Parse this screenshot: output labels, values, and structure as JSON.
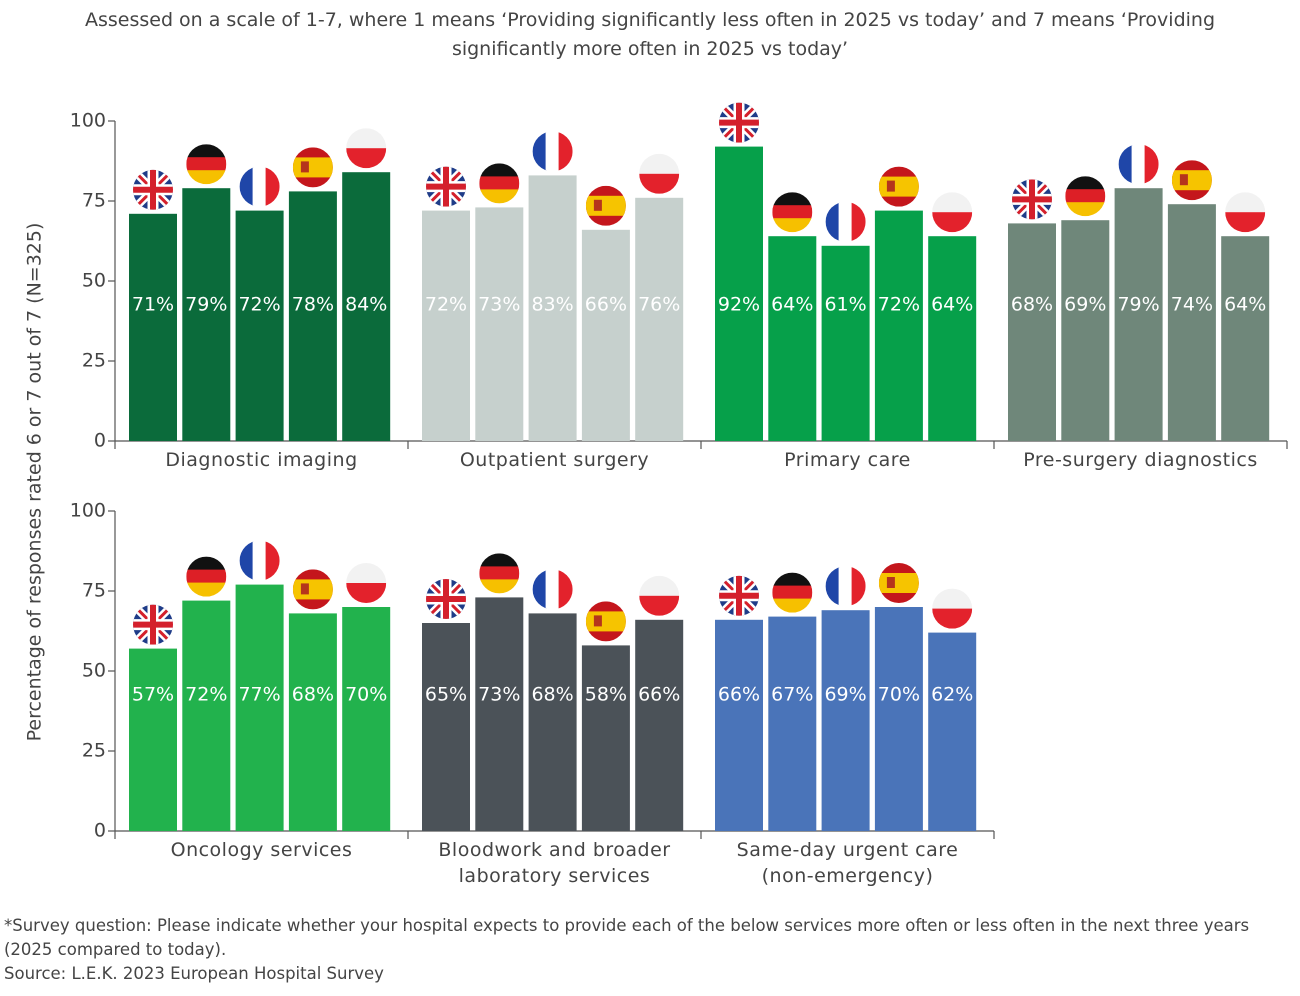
{
  "title": "Assessed on a scale of 1-7, where 1 means ‘Providing significantly less often in 2025 vs today’ and 7 means ‘Providing significantly more often in 2025 vs today’",
  "y_label": "Percentage of responses rated 6 or 7 out of 7 (N=325)",
  "footnote": "*Survey question: Please indicate whether your hospital expects to provide each of the below services more often or less often in the next three years (2025 compared to today).",
  "source": "Source: L.E.K. 2023 European Hospital Survey",
  "chart_data": [
    {
      "type": "bar",
      "ylim": [
        0,
        100
      ],
      "yticks": [
        0,
        25,
        50,
        75,
        100
      ],
      "groups": [
        {
          "name": "Diagnostic imaging",
          "color": "#0b6b3b",
          "values": [
            71,
            79,
            72,
            78,
            84
          ],
          "value_labels": [
            "71%",
            "79%",
            "72%",
            "78%",
            "84%"
          ]
        },
        {
          "name": "Outpatient surgery",
          "color": "#c6d0cd",
          "values": [
            72,
            73,
            83,
            66,
            76
          ],
          "value_labels": [
            "72%",
            "73%",
            "83%",
            "66%",
            "76%"
          ]
        },
        {
          "name": "Primary care",
          "color": "#06a04a",
          "values": [
            92,
            64,
            61,
            72,
            64
          ],
          "value_labels": [
            "92%",
            "64%",
            "61%",
            "72%",
            "64%"
          ]
        },
        {
          "name": "Pre-surgery diagnostics",
          "color": "#6f877a",
          "values": [
            68,
            69,
            79,
            74,
            64
          ],
          "value_labels": [
            "68%",
            "69%",
            "79%",
            "74%",
            "64%"
          ]
        }
      ]
    },
    {
      "type": "bar",
      "ylim": [
        0,
        100
      ],
      "yticks": [
        0,
        25,
        50,
        75,
        100
      ],
      "groups": [
        {
          "name": "Oncology services",
          "color": "#22b24d",
          "values": [
            57,
            72,
            77,
            68,
            70
          ],
          "value_labels": [
            "57%",
            "72%",
            "77%",
            "68%",
            "70%"
          ]
        },
        {
          "name": "Bloodwork and broader laboratory services",
          "color": "#4b5258",
          "values": [
            65,
            73,
            68,
            58,
            66
          ],
          "value_labels": [
            "65%",
            "73%",
            "68%",
            "58%",
            "66%"
          ]
        },
        {
          "name": "Same-day urgent care (non-emergency)",
          "color": "#4a74b9",
          "values": [
            66,
            67,
            69,
            70,
            62
          ],
          "value_labels": [
            "66%",
            "67%",
            "69%",
            "70%",
            "62%"
          ]
        }
      ]
    }
  ]
}
